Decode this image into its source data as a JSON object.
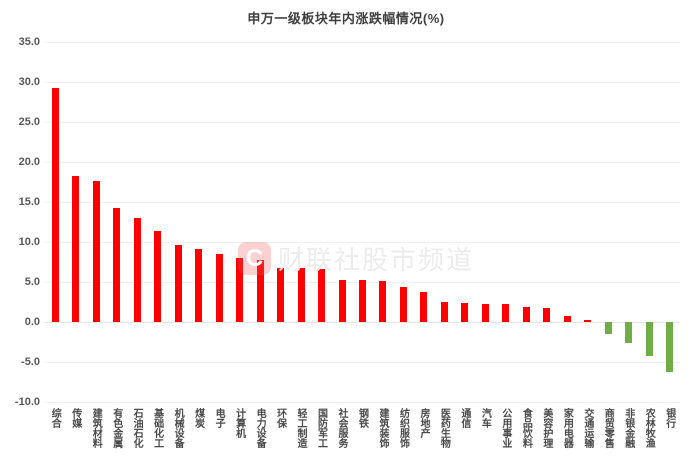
{
  "title": "申万一级板块年内涨跌幅情况(%)",
  "watermark": {
    "logo_glyph": "C",
    "logo_name": "cailianshe-logo",
    "text": "财联社股市频道"
  },
  "colors": {
    "positive_bar": "#fe0000",
    "negative_bar": "#70ad47",
    "grid": "#f0f0f0",
    "axis_label": "#595959",
    "title": "#3f3f3f"
  },
  "chart_data": {
    "type": "bar",
    "title": "申万一级板块年内涨跌幅情况(%)",
    "xlabel": "",
    "ylabel": "",
    "ylim": [
      -10,
      35
    ],
    "ytick_interval": 5,
    "ytick_labels": [
      "35.0",
      "30.0",
      "25.0",
      "20.0",
      "15.0",
      "10.0",
      "5.0",
      "0.0",
      "-5.0",
      "-10.0"
    ],
    "grid": true,
    "legend": false,
    "categories": [
      "综合",
      "传媒",
      "建筑材料",
      "有色金属",
      "石油石化",
      "基础化工",
      "机械设备",
      "煤炭",
      "电子",
      "计算机",
      "电力设备",
      "环保",
      "轻工制造",
      "国防军工",
      "社会服务",
      "钢铁",
      "建筑装饰",
      "纺织服饰",
      "房地产",
      "医药生物",
      "通信",
      "汽车",
      "公用事业",
      "食品饮料",
      "美容护理",
      "家用电器",
      "交通运输",
      "商贸零售",
      "非银金融",
      "农林牧渔",
      "银行"
    ],
    "values": [
      29.3,
      18.3,
      17.6,
      14.2,
      13.0,
      11.4,
      9.6,
      9.1,
      8.5,
      8.0,
      7.7,
      6.8,
      6.7,
      6.6,
      5.3,
      5.2,
      5.1,
      4.4,
      3.7,
      2.5,
      2.4,
      2.3,
      2.2,
      1.9,
      1.8,
      0.7,
      0.3,
      -1.5,
      -2.6,
      -4.2,
      -6.3
    ]
  }
}
